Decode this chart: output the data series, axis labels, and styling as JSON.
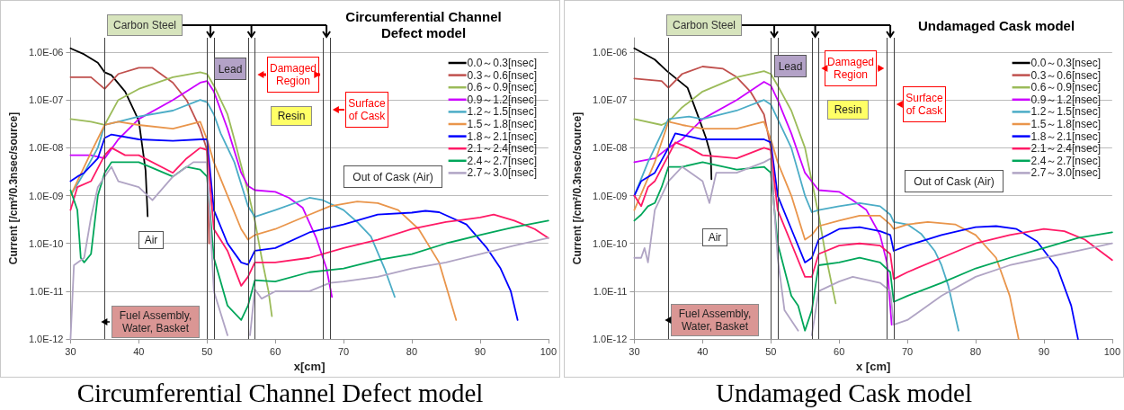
{
  "chart_data": [
    {
      "type": "line",
      "title": "Circumferential Channel Defect model",
      "xlabel": "x[cm]",
      "ylabel": "Current [/cm²/0.3nsec/source]",
      "xlim": [
        30,
        100
      ],
      "xticks": [
        30,
        40,
        50,
        60,
        70,
        80,
        90,
        100
      ],
      "ylim": [
        1e-12,
        2e-06
      ],
      "yticks": [
        {
          "value": 1e-12,
          "label": "1.0E-12"
        },
        {
          "value": 1e-11,
          "label": "1.0E-11"
        },
        {
          "value": 1e-10,
          "label": "1.0E-10"
        },
        {
          "value": 1e-09,
          "label": "1.0E-09"
        },
        {
          "value": 1e-08,
          "label": "1.0E-08"
        },
        {
          "value": 1e-07,
          "label": "1.0E-07"
        },
        {
          "value": 1e-06,
          "label": "1.0E-06"
        }
      ],
      "log": "y",
      "grid": "y",
      "legend": "top right",
      "ref_lines": [
        {
          "axis": "x",
          "value": 35
        },
        {
          "axis": "x",
          "value": 50
        },
        {
          "axis": "x",
          "value": 51
        },
        {
          "axis": "x",
          "value": 56
        },
        {
          "axis": "x",
          "value": 57
        },
        {
          "axis": "x",
          "value": 67
        },
        {
          "axis": "x",
          "value": 68
        }
      ],
      "annotations": [
        "Carbon Steel",
        "Lead",
        "Damaged Region",
        "Surface of Cask",
        "Resin",
        "Out of Cask (Air)",
        "Air",
        "Fuel Assembly, Water, Basket",
        "Circumferential Channel Defect model"
      ],
      "series": [
        {
          "name": "0.0～0.3[nsec]",
          "color": "#000000",
          "x": [
            30,
            32,
            34,
            35,
            36,
            38,
            40,
            41,
            41.3
          ],
          "values": [
            1.2e-06,
            9e-07,
            6e-07,
            3.8e-07,
            3.3e-07,
            1.5e-07,
            3.7e-08,
            3.3e-09,
            3.7e-10
          ]
        },
        {
          "name": "0.3～0.6[nsec]",
          "color": "#c0504d",
          "x": [
            30,
            33,
            35,
            37,
            40,
            42,
            45,
            47,
            49,
            50,
            50.3
          ],
          "values": [
            3e-07,
            3e-07,
            1.7e-07,
            3.5e-07,
            4.7e-07,
            4.7e-07,
            2.3e-07,
            1e-07,
            2.5e-08,
            9e-09,
            1e-10
          ]
        },
        {
          "name": "0.6～0.9[nsec]",
          "color": "#9bbb59",
          "x": [
            30,
            33,
            35,
            37,
            40,
            45,
            49,
            50,
            51,
            52,
            53,
            54,
            56,
            57,
            58,
            59,
            59.5
          ],
          "values": [
            4e-08,
            3.5e-08,
            3e-08,
            1e-07,
            1.7e-07,
            3e-07,
            3.8e-07,
            3.5e-07,
            2e-07,
            1e-07,
            5e-08,
            1.5e-08,
            1.2e-09,
            3e-10,
            5e-11,
            1e-11,
            3e-12
          ]
        },
        {
          "name": "0.9～1.2[nsec]",
          "color": "#cc00ff",
          "x": [
            30,
            33,
            35,
            37,
            40,
            45,
            49,
            50,
            51,
            53,
            55,
            56,
            57,
            60,
            62,
            64,
            66,
            67.5,
            68.3
          ],
          "values": [
            7e-09,
            7e-09,
            6e-09,
            1.5e-08,
            4e-08,
            1e-07,
            2.3e-07,
            2.5e-07,
            1.5e-07,
            2.5e-08,
            3e-09,
            1.6e-09,
            1.3e-09,
            1.2e-09,
            9e-10,
            5.6e-10,
            1.3e-10,
            3e-11,
            7.6e-12
          ]
        },
        {
          "name": "1.2～1.5[nsec]",
          "color": "#4bacc6",
          "x": [
            30,
            32,
            34,
            35,
            37,
            40,
            45,
            49,
            50,
            51,
            52,
            54,
            56,
            57,
            60,
            65,
            67,
            70,
            72,
            74,
            76,
            77.5
          ],
          "values": [
            1e-09,
            3e-09,
            1e-08,
            3e-08,
            3.5e-08,
            4.5e-08,
            6e-08,
            1e-07,
            9e-08,
            5e-08,
            2e-08,
            5e-09,
            6e-10,
            3.6e-10,
            5e-10,
            9e-10,
            8e-10,
            5e-10,
            2.8e-10,
            1.4e-10,
            3e-11,
            7.6e-12
          ]
        },
        {
          "name": "1.5～1.8[nsec]",
          "color": "#e9954b",
          "x": [
            30,
            33,
            35,
            37,
            40,
            45,
            49,
            50,
            51,
            53,
            55,
            56,
            57,
            60,
            65,
            68,
            72,
            75,
            78,
            81,
            84,
            86.5
          ],
          "values": [
            1e-09,
            8e-09,
            3e-08,
            3.5e-08,
            3e-08,
            2.5e-08,
            3.5e-08,
            1.5e-08,
            5e-09,
            1e-09,
            2e-10,
            1.2e-10,
            1.5e-10,
            2e-10,
            4e-10,
            6e-10,
            7.5e-10,
            7e-10,
            5e-10,
            2e-10,
            4e-11,
            2.5e-12
          ]
        },
        {
          "name": "1.8～2.1[nsec]",
          "color": "#0000ff",
          "x": [
            30,
            31,
            32,
            34,
            35,
            36,
            40,
            45,
            49,
            50,
            51,
            53,
            55,
            56,
            57,
            60,
            65,
            70,
            75,
            80,
            82,
            84,
            88,
            91,
            93,
            94.5,
            95.5
          ],
          "values": [
            2e-09,
            2.5e-09,
            3e-09,
            6e-09,
            1.6e-08,
            1.9e-08,
            1.5e-08,
            1.4e-08,
            1.5e-08,
            1.5e-08,
            5e-10,
            1e-10,
            4e-11,
            3.6e-11,
            7e-11,
            8e-11,
            1.7e-10,
            2.5e-10,
            4e-10,
            4.4e-10,
            4.8e-10,
            4.5e-10,
            2.5e-10,
            8e-11,
            3e-11,
            1e-11,
            2.5e-12
          ]
        },
        {
          "name": "2.1～2.4[nsec]",
          "color": "#ff1a66",
          "x": [
            30,
            31,
            33,
            35,
            36,
            38,
            40,
            45,
            47,
            49,
            50,
            51,
            53,
            55,
            56,
            57,
            60,
            65,
            70,
            75,
            80,
            85,
            90,
            92,
            95,
            98,
            100
          ],
          "values": [
            5e-10,
            1.5e-09,
            2e-09,
            7e-09,
            1e-08,
            7e-09,
            7e-09,
            3e-09,
            6e-09,
            1e-08,
            9e-09,
            2e-10,
            7e-11,
            1.3e-11,
            2e-11,
            4e-11,
            4e-11,
            5e-11,
            8e-11,
            1.2e-10,
            2e-10,
            2.8e-10,
            3.5e-10,
            4e-10,
            3e-10,
            2e-10,
            1.3e-10
          ]
        },
        {
          "name": "2.4～2.7[nsec]",
          "color": "#00a65a",
          "x": [
            30,
            31,
            31.5,
            32,
            33,
            34,
            35,
            36,
            40,
            45,
            47,
            49,
            50,
            51,
            53,
            55,
            56,
            57,
            60,
            65,
            70,
            75,
            80,
            85,
            90,
            95,
            100
          ],
          "values": [
            1.3e-09,
            5e-10,
            5e-11,
            4e-11,
            6e-11,
            1e-09,
            3e-09,
            5e-09,
            5e-09,
            2.5e-09,
            4e-09,
            3.5e-09,
            2.5e-09,
            5e-11,
            5e-12,
            2.5e-12,
            5e-12,
            1.7e-11,
            1.6e-11,
            2.5e-11,
            3e-11,
            4.5e-11,
            6e-11,
            1e-10,
            1.5e-10,
            2.2e-10,
            3e-10
          ]
        },
        {
          "name": "2.7～3.0[nsec]",
          "color": "#b0a4c4",
          "x": [
            30,
            30.5,
            32,
            33,
            34,
            35,
            36,
            37,
            40,
            42,
            45,
            48,
            50,
            51,
            53,
            54,
            56.3,
            57,
            58,
            60,
            65,
            68,
            70,
            75,
            80,
            85,
            90,
            95,
            100
          ],
          "values": [
            1e-12,
            3.5e-11,
            5e-11,
            3.5e-10,
            1.5e-09,
            2.5e-09,
            4e-09,
            2e-09,
            1.5e-09,
            8e-10,
            2.5e-09,
            5e-09,
            5e-09,
            1e-11,
            1.2e-12,
            null,
            1.2e-12,
            1.1e-11,
            7e-12,
            1e-11,
            1e-11,
            1.5e-11,
            1.6e-11,
            2e-11,
            3e-11,
            4e-11,
            6e-11,
            9e-11,
            1.3e-10
          ]
        }
      ]
    },
    {
      "type": "line",
      "title": "Undamaged Cask model",
      "xlabel": "x [cm]",
      "ylabel": "Current [/cm²/0.3nsec/source]",
      "xlim": [
        30,
        100
      ],
      "xticks": [
        30,
        40,
        50,
        60,
        70,
        80,
        90,
        100
      ],
      "ylim": [
        1e-12,
        2e-06
      ],
      "yticks": [
        {
          "value": 1e-12,
          "label": "1.0E-12"
        },
        {
          "value": 1e-11,
          "label": "1.0E-11"
        },
        {
          "value": 1e-10,
          "label": "1.0E-10"
        },
        {
          "value": 1e-09,
          "label": "1.0E-09"
        },
        {
          "value": 1e-08,
          "label": "1.0E-08"
        },
        {
          "value": 1e-07,
          "label": "1.0E-07"
        },
        {
          "value": 1e-06,
          "label": "1.0E-06"
        }
      ],
      "log": "y",
      "grid": "y",
      "legend": "top right",
      "ref_lines": [
        {
          "axis": "x",
          "value": 35
        },
        {
          "axis": "x",
          "value": 50
        },
        {
          "axis": "x",
          "value": 51
        },
        {
          "axis": "x",
          "value": 56
        },
        {
          "axis": "x",
          "value": 57
        },
        {
          "axis": "x",
          "value": 67
        },
        {
          "axis": "x",
          "value": 68
        }
      ],
      "annotations": [
        "Carbon Steel",
        "Lead",
        "Damaged Region",
        "Surface of Cask",
        "Resin",
        "Out of Cask (Air)",
        "Air",
        "Fuel Assembly, Water, Basket",
        "Undamaged Cask model"
      ],
      "series": [
        {
          "name": "0.0～0.3[nsec]",
          "color": "#000000",
          "x": [
            30,
            33,
            34.8,
            37.8,
            39.5,
            40.5,
            41.2,
            41.3
          ],
          "values": [
            1.2e-06,
            7e-07,
            4e-07,
            1.8e-07,
            4e-08,
            1.6e-08,
            7e-09,
            2.2e-09
          ]
        },
        {
          "name": "0.3～0.6[nsec]",
          "color": "#c0504d",
          "x": [
            30,
            34,
            35,
            37,
            40,
            43,
            45,
            47,
            49,
            50,
            50.5
          ],
          "values": [
            2.8e-07,
            2.5e-07,
            1.8e-07,
            3.5e-07,
            5e-07,
            4.5e-07,
            3e-07,
            1.5e-07,
            5e-08,
            1e-08,
            5e-10
          ]
        },
        {
          "name": "0.6～0.9[nsec]",
          "color": "#9bbb59",
          "x": [
            30,
            34,
            35,
            37,
            40,
            45,
            49,
            50,
            51,
            53,
            55,
            56,
            57,
            58,
            59.5
          ],
          "values": [
            4e-08,
            3e-08,
            3.5e-08,
            7e-08,
            1.5e-07,
            3e-07,
            4e-07,
            3.5e-07,
            2e-07,
            6e-08,
            1e-08,
            2e-09,
            4e-10,
            6e-11,
            5.6e-12
          ]
        },
        {
          "name": "0.9～1.2[nsec]",
          "color": "#cc00ff",
          "x": [
            30,
            33,
            35,
            37,
            40,
            45,
            49,
            50,
            51,
            53,
            55,
            57,
            60,
            62,
            64,
            66,
            67,
            67.7
          ],
          "values": [
            5e-09,
            6e-09,
            1e-08,
            1.5e-08,
            4e-08,
            1e-07,
            2.4e-07,
            2e-07,
            1e-07,
            2e-08,
            3e-09,
            1.3e-09,
            1.2e-09,
            8e-10,
            5e-10,
            1.5e-10,
            4e-11,
            2e-12
          ]
        },
        {
          "name": "1.2～1.5[nsec]",
          "color": "#4bacc6",
          "x": [
            30,
            32,
            34,
            35,
            38,
            40,
            45,
            49,
            50,
            51,
            53,
            55,
            56,
            57,
            60,
            63,
            66,
            67.5,
            68,
            70,
            72,
            74,
            75,
            76,
            77.5
          ],
          "values": [
            1e-09,
            5e-09,
            2e-08,
            4e-08,
            4.5e-08,
            4e-08,
            6e-08,
            1e-07,
            8e-08,
            4e-08,
            1e-08,
            1e-09,
            4.5e-10,
            5e-10,
            6e-10,
            7e-10,
            6e-10,
            4e-10,
            2.8e-10,
            2.5e-10,
            1.6e-10,
            7e-11,
            3.5e-11,
            1.3e-11,
            1.5e-12
          ]
        },
        {
          "name": "1.5～1.8[nsec]",
          "color": "#e9954b",
          "x": [
            30,
            33,
            35,
            37,
            40,
            45,
            49,
            50,
            51,
            53,
            55,
            56,
            57,
            60,
            63,
            66,
            67.5,
            68,
            70,
            73,
            77,
            80,
            83,
            85,
            86.3
          ],
          "values": [
            5e-10,
            5e-09,
            3.5e-08,
            3e-08,
            2.5e-08,
            2.5e-08,
            3.5e-08,
            1.5e-08,
            5e-09,
            1e-09,
            1.2e-10,
            1.5e-10,
            2.3e-10,
            3e-10,
            3.8e-10,
            3.8e-10,
            2.5e-10,
            2e-10,
            2.5e-10,
            2.8e-10,
            2.5e-10,
            1.5e-10,
            5e-11,
            8e-12,
            1e-12
          ]
        },
        {
          "name": "1.8～2.1[nsec]",
          "color": "#0000ff",
          "x": [
            30,
            31,
            33,
            35,
            36,
            40,
            45,
            49,
            50,
            51,
            53,
            55,
            56,
            57,
            60,
            63,
            66,
            67.5,
            68,
            70,
            75,
            80,
            83,
            86,
            89,
            92,
            94,
            95
          ],
          "values": [
            1e-09,
            2e-09,
            3e-09,
            1e-08,
            2e-08,
            1.5e-08,
            1.5e-08,
            1.5e-08,
            1.3e-08,
            1e-09,
            2e-10,
            4e-11,
            5e-11,
            1.2e-10,
            2e-10,
            2.2e-10,
            1.8e-10,
            1.5e-10,
            7e-11,
            9e-11,
            1.5e-10,
            2.2e-10,
            2.3e-10,
            2e-10,
            1.1e-10,
            3e-11,
            5e-12,
            1e-12
          ]
        },
        {
          "name": "2.1～2.4[nsec]",
          "color": "#ff1a66",
          "x": [
            30,
            31,
            32,
            33,
            35,
            36,
            38,
            40,
            45,
            49,
            50,
            51,
            53,
            55,
            56,
            57,
            60,
            63,
            66,
            67.5,
            68,
            70,
            75,
            80,
            85,
            90,
            93,
            96,
            100
          ],
          "values": [
            1e-09,
            6e-10,
            1.5e-09,
            2e-09,
            7e-09,
            1.3e-08,
            1e-08,
            7e-09,
            6e-09,
            1e-08,
            9e-09,
            5e-10,
            1e-10,
            2e-11,
            2e-11,
            6e-11,
            9e-11,
            1e-10,
            9e-11,
            6e-11,
            1.8e-11,
            2.5e-11,
            5e-11,
            1e-10,
            1.5e-10,
            2e-10,
            1.8e-10,
            1.2e-10,
            4.5e-11
          ]
        },
        {
          "name": "2.4～2.7[nsec]",
          "color": "#00a65a",
          "x": [
            30,
            31,
            32,
            33,
            34,
            35,
            37,
            40,
            45,
            49,
            50,
            51,
            53,
            54,
            55,
            56,
            57,
            60,
            63,
            66,
            67.5,
            68,
            70,
            75,
            80,
            85,
            90,
            95,
            100
          ],
          "values": [
            3e-10,
            4e-10,
            6e-10,
            7e-10,
            1.5e-09,
            4e-09,
            4e-09,
            5e-09,
            3.5e-09,
            4e-09,
            3e-09,
            1e-10,
            8e-12,
            5e-12,
            1.5e-12,
            4e-12,
            3.5e-11,
            4e-11,
            5e-11,
            4e-11,
            2.5e-11,
            6e-12,
            8e-12,
            1.5e-11,
            3e-11,
            5e-11,
            8e-11,
            1.3e-10,
            1.7e-10
          ]
        },
        {
          "name": "2.7～3.0[nsec]",
          "color": "#b0a4c4",
          "x": [
            30,
            31,
            31.5,
            32,
            33,
            34,
            35,
            37,
            40,
            41,
            42,
            45,
            49,
            50,
            51,
            52,
            54,
            55,
            56,
            57,
            60,
            62,
            66,
            67.5,
            68,
            70,
            75,
            80,
            85,
            90,
            95,
            100
          ],
          "values": [
            5e-11,
            5e-11,
            8e-11,
            4e-11,
            5e-10,
            1e-09,
            2e-09,
            4e-09,
            2e-09,
            7e-10,
            3e-09,
            3e-09,
            5e-09,
            6e-09,
            5e-11,
            4e-12,
            1.5e-12,
            null,
            1.2e-12,
            1e-11,
            1.6e-11,
            2e-11,
            1.5e-11,
            1e-11,
            2e-12,
            2.5e-12,
            8e-12,
            2e-11,
            3.5e-11,
            5e-11,
            7e-11,
            1e-10
          ]
        }
      ]
    }
  ]
}
